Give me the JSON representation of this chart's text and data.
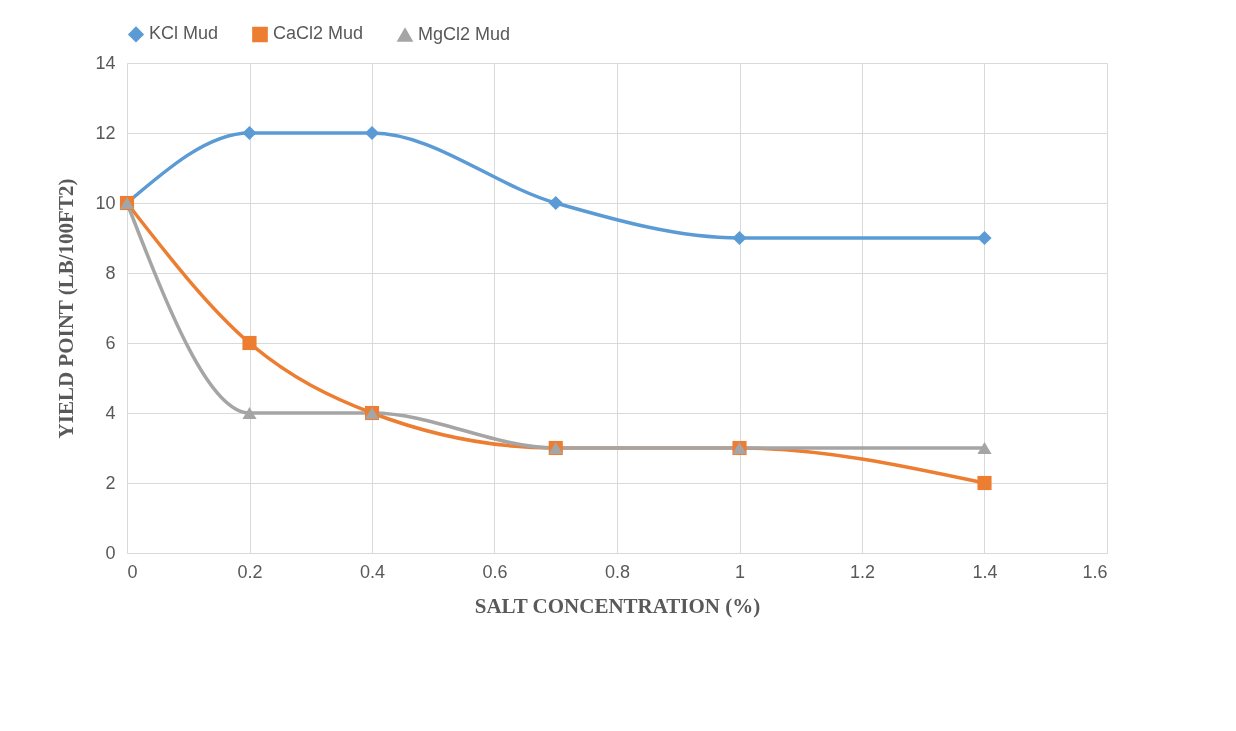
{
  "chart_data": {
    "type": "line",
    "xlabel": "SALT CONCENTRATION (%)",
    "ylabel": "YIELD POINT (LB/100FT2)",
    "x": [
      0,
      0.2,
      0.4,
      0.7,
      1,
      1.4
    ],
    "series": [
      {
        "name": "KCl Mud",
        "color": "#5b9bd5",
        "marker": "diamond",
        "values": [
          10,
          12,
          12,
          10,
          9,
          9
        ]
      },
      {
        "name": "CaCl2 Mud",
        "color": "#ed7d31",
        "marker": "square",
        "values": [
          10,
          6,
          4,
          3,
          3,
          2
        ]
      },
      {
        "name": "MgCl2 Mud",
        "color": "#a5a5a5",
        "marker": "triangle",
        "values": [
          10,
          4,
          4,
          3,
          3,
          3
        ]
      }
    ],
    "xlim": [
      0,
      1.6
    ],
    "xticks": [
      0,
      0.2,
      0.4,
      0.6,
      0.8,
      1,
      1.2,
      1.4,
      1.6
    ],
    "ylim": [
      0,
      14
    ],
    "yticks": [
      0,
      2,
      4,
      6,
      8,
      10,
      12,
      14
    ],
    "grid": true,
    "legend": "top",
    "line_style": "solid"
  }
}
